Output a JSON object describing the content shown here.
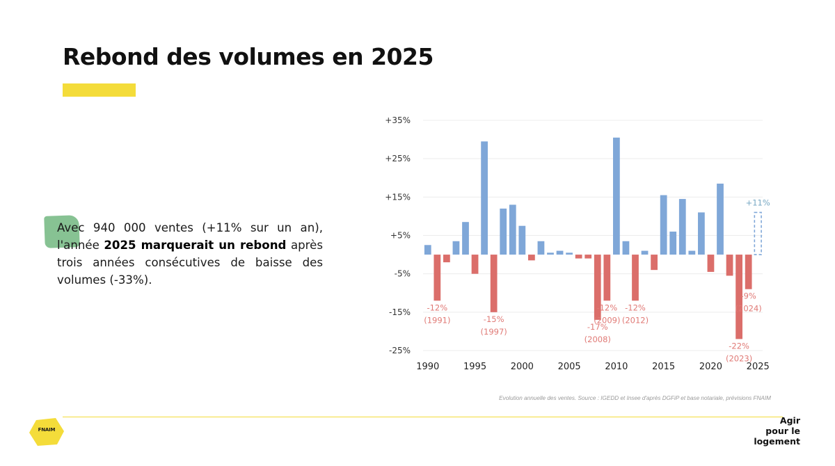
{
  "slide": {
    "title": "Rebond des volumes en 2025",
    "accent_color": "#f4dc3a",
    "blob_color": "#5fae6f",
    "body": {
      "part1": "Avec 940 000 ventes (+11% sur un an), l'année ",
      "bold": "2025 marquerait un rebond",
      "part2": " après trois années consécutives de baisse des volumes (-33%)."
    },
    "source": "Evolution annuelle des ventes. Source : IGEDD et Insee d'après DGFiP et base notariale, prévisions FNAIM"
  },
  "footer": {
    "logo_text": "FNAIM",
    "logo_color": "#f4dc3a",
    "tagline": [
      "Agir",
      "pour le",
      "logement"
    ]
  },
  "chart_data": {
    "type": "bar",
    "x": [
      1990,
      1991,
      1992,
      1993,
      1994,
      1995,
      1996,
      1997,
      1998,
      1999,
      2000,
      2001,
      2002,
      2003,
      2004,
      2005,
      2006,
      2007,
      2008,
      2009,
      2010,
      2011,
      2012,
      2013,
      2014,
      2015,
      2016,
      2017,
      2018,
      2019,
      2020,
      2021,
      2022,
      2023,
      2024,
      2025
    ],
    "values": [
      2.5,
      -12,
      -2,
      3.5,
      8.5,
      -5,
      29.5,
      -15,
      12,
      13,
      7.5,
      -1.5,
      3.5,
      0.5,
      1,
      0.5,
      -1,
      -1,
      -17,
      -12,
      30.5,
      3.5,
      -12,
      1,
      -4,
      15.5,
      6,
      14.5,
      1,
      11,
      -4.5,
      18.5,
      -5.5,
      -22,
      -9,
      11
    ],
    "projected": [
      2025
    ],
    "ylim": [
      -25,
      35
    ],
    "yticks": [
      -25,
      -15,
      -5,
      5,
      15,
      25,
      35
    ],
    "ytick_labels": [
      "-25%",
      "-15%",
      "-5%",
      "+5%",
      "+15%",
      "+25%",
      "+35%"
    ],
    "xticks": [
      1990,
      1995,
      2000,
      2005,
      2010,
      2015,
      2020,
      2025
    ],
    "grid": true,
    "colors": {
      "positive": "#7fa7d8",
      "negative": "#db6e6a",
      "grid": "#ececec",
      "axis_text": "#333333",
      "annotation_neg": "#e07a76",
      "annotation_pos": "#79a9c4"
    },
    "annotations": [
      {
        "year": 1991,
        "lines": [
          "-12%",
          "(1991)"
        ]
      },
      {
        "year": 1997,
        "lines": [
          "-15%",
          "(1997)"
        ]
      },
      {
        "year": 2008,
        "lines": [
          "-17%",
          "(2008)"
        ]
      },
      {
        "year": 2009,
        "lines": [
          "-12%",
          "(2009)"
        ]
      },
      {
        "year": 2012,
        "lines": [
          "-12%",
          "(2012)"
        ]
      },
      {
        "year": 2023,
        "lines": [
          "-22%",
          "(2023)"
        ]
      },
      {
        "year": 2024,
        "lines": [
          "-9%",
          "(2024)"
        ]
      },
      {
        "year": 2025,
        "lines": [
          "+11%"
        ]
      }
    ]
  }
}
